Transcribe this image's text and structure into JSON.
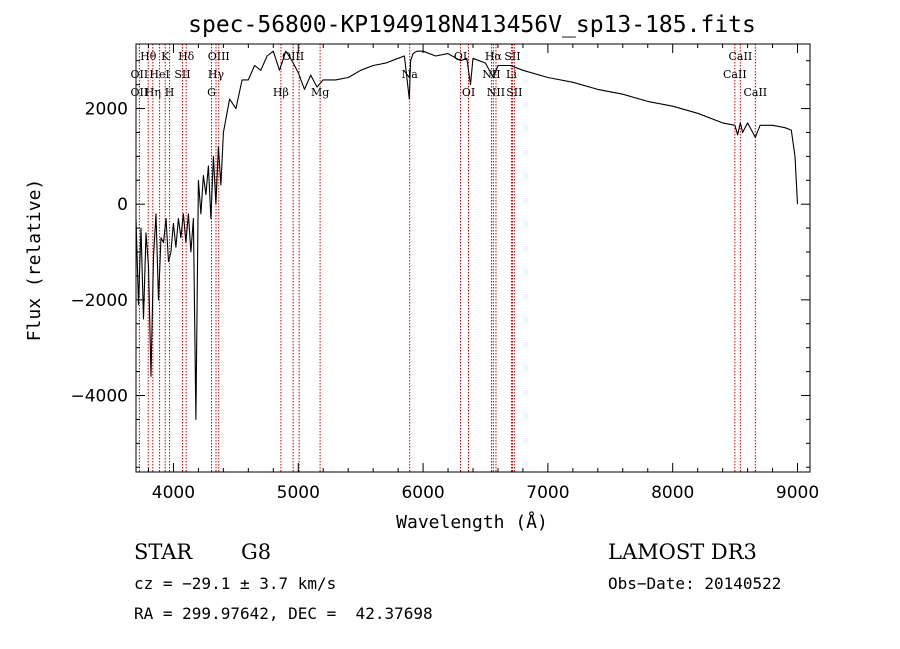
{
  "chart_data": {
    "type": "line",
    "title": "spec-56800-KP194918N413456V_sp13-185.fits",
    "xlabel": "Wavelength (Å)",
    "ylabel": "Flux (relative)",
    "xlim": [
      3700,
      9100
    ],
    "ylim": [
      -5600,
      3350
    ],
    "xticks": [
      4000,
      5000,
      6000,
      7000,
      8000,
      9000
    ],
    "yticks": [
      -4000,
      -2000,
      0,
      2000
    ],
    "series": [
      {
        "name": "flux",
        "x": [
          3700,
          3720,
          3740,
          3760,
          3780,
          3800,
          3820,
          3840,
          3860,
          3880,
          3900,
          3920,
          3940,
          3960,
          3980,
          4000,
          4020,
          4040,
          4060,
          4080,
          4100,
          4120,
          4140,
          4160,
          4180,
          4200,
          4220,
          4240,
          4260,
          4280,
          4300,
          4320,
          4340,
          4360,
          4380,
          4400,
          4450,
          4500,
          4550,
          4600,
          4650,
          4700,
          4750,
          4800,
          4850,
          4900,
          4950,
          5000,
          5050,
          5100,
          5150,
          5200,
          5300,
          5400,
          5500,
          5600,
          5700,
          5800,
          5850,
          5890,
          5900,
          5920,
          5950,
          6000,
          6100,
          6200,
          6300,
          6350,
          6380,
          6400,
          6500,
          6563,
          6600,
          6700,
          6800,
          7000,
          7200,
          7400,
          7600,
          7800,
          8000,
          8200,
          8400,
          8498,
          8520,
          8542,
          8560,
          8600,
          8662,
          8700,
          8800,
          8900,
          8950,
          8980,
          9000
        ],
        "y": [
          -300,
          -2100,
          -500,
          -2400,
          -600,
          -1300,
          -3600,
          -1100,
          -200,
          -2000,
          -700,
          -800,
          -300,
          -1200,
          -1000,
          -400,
          -900,
          -300,
          -700,
          -200,
          -800,
          -200,
          -1000,
          -300,
          -4500,
          500,
          -200,
          600,
          200,
          800,
          -300,
          1000,
          0,
          1200,
          400,
          1500,
          2200,
          2000,
          2600,
          2600,
          2900,
          2800,
          3100,
          3200,
          2800,
          3200,
          3000,
          2750,
          2400,
          2700,
          2450,
          2600,
          2600,
          2650,
          2800,
          2900,
          2950,
          3050,
          3100,
          2200,
          3000,
          3150,
          3200,
          3200,
          3100,
          3150,
          3000,
          3050,
          2500,
          3050,
          2950,
          2650,
          2900,
          2900,
          2800,
          2650,
          2550,
          2400,
          2300,
          2150,
          2050,
          1900,
          1700,
          1650,
          1450,
          1700,
          1500,
          1700,
          1400,
          1650,
          1650,
          1600,
          1550,
          1000,
          0
        ]
      }
    ],
    "line_ids": [
      {
        "label": "Hθ",
        "wave": 3798,
        "row": 1
      },
      {
        "label": "K",
        "wave": 3934,
        "row": 1
      },
      {
        "label": "Hδ",
        "wave": 4102,
        "row": 1
      },
      {
        "label": "OII",
        "wave": 3727,
        "row": 2
      },
      {
        "label": "HeI",
        "wave": 3889,
        "row": 2
      },
      {
        "label": "SII",
        "wave": 4072,
        "row": 2
      },
      {
        "label": "OII",
        "wave": 3727,
        "row": 3
      },
      {
        "label": "Hη",
        "wave": 3835,
        "row": 3
      },
      {
        "label": "H",
        "wave": 3969,
        "row": 3
      },
      {
        "label": "OIII",
        "wave": 4363,
        "row": 1
      },
      {
        "label": "Hγ",
        "wave": 4341,
        "row": 2
      },
      {
        "label": "G",
        "wave": 4305,
        "row": 3
      },
      {
        "label": "OIII",
        "wave": 4959,
        "row": 1
      },
      {
        "label": "Hβ",
        "wave": 4861,
        "row": 3
      },
      {
        "label": "Mg",
        "wave": 5175,
        "row": 3
      },
      {
        "label": "Na",
        "wave": 5893,
        "row": 2
      },
      {
        "label": "OI",
        "wave": 6300,
        "row": 1
      },
      {
        "label": "OI",
        "wave": 6364,
        "row": 3
      },
      {
        "label": "Hα",
        "wave": 6563,
        "row": 1
      },
      {
        "label": "SII",
        "wave": 6716,
        "row": 1
      },
      {
        "label": "NII",
        "wave": 6548,
        "row": 2
      },
      {
        "label": "Li",
        "wave": 6708,
        "row": 2
      },
      {
        "label": "NII",
        "wave": 6584,
        "row": 3
      },
      {
        "label": "SII",
        "wave": 6731,
        "row": 3
      },
      {
        "label": "CaII",
        "wave": 8542,
        "row": 1
      },
      {
        "label": "CaII",
        "wave": 8498,
        "row": 2
      },
      {
        "label": "CaII",
        "wave": 8662,
        "row": 3
      }
    ],
    "marker_waves": [
      3727,
      3798,
      3835,
      3889,
      3934,
      3969,
      4072,
      4102,
      4305,
      4341,
      4363,
      4861,
      4959,
      5007,
      5175,
      5893,
      6300,
      6364,
      6548,
      6563,
      6584,
      6708,
      6716,
      6731,
      8498,
      8542,
      8662
    ]
  },
  "info": {
    "object_class": "STAR",
    "subclass": "G8",
    "survey": "LAMOST DR3",
    "redshift": "cz = −29.1 ± 3.7 km/s",
    "obs_date": "Obs−Date: 20140522",
    "coords": "RA = 299.97642, DEC =  42.37698"
  },
  "colors": {
    "line_marker": "#cc0000",
    "spectrum": "#000000",
    "axes": "#000000"
  }
}
